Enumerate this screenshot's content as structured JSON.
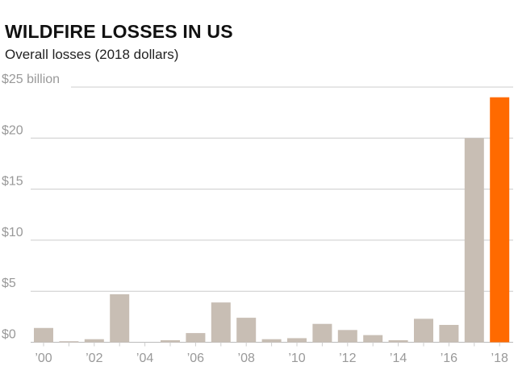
{
  "chart_data": {
    "type": "bar",
    "title": "WILDFIRE LOSSES IN US",
    "subtitle": "Overall losses (2018 dollars)",
    "categories": [
      "2000",
      "2001",
      "2002",
      "2003",
      "2004",
      "2005",
      "2006",
      "2007",
      "2008",
      "2009",
      "2010",
      "2011",
      "2012",
      "2013",
      "2014",
      "2015",
      "2016",
      "2017",
      "2018"
    ],
    "x_tick_labels": [
      "’00",
      "’02",
      "’04",
      "’06",
      "’08",
      "’10",
      "’12",
      "’14",
      "’16",
      "’18"
    ],
    "values": [
      1.4,
      0.1,
      0.3,
      4.7,
      0,
      0.2,
      0.9,
      3.9,
      2.4,
      0.3,
      0.4,
      1.8,
      1.2,
      0.7,
      0.2,
      2.3,
      1.7,
      20.0,
      24.0
    ],
    "y_ticks": [
      0,
      5,
      10,
      15,
      20,
      25
    ],
    "y_tick_labels": [
      "$0",
      "$5",
      "$10",
      "$15",
      "$20",
      "$25 billion"
    ],
    "ylim": [
      0,
      25
    ],
    "grid": true,
    "colors": {
      "default": "#c8beb4",
      "highlight": "#ff6a00",
      "grid": "#cccccc"
    },
    "highlight_category": "2018"
  }
}
